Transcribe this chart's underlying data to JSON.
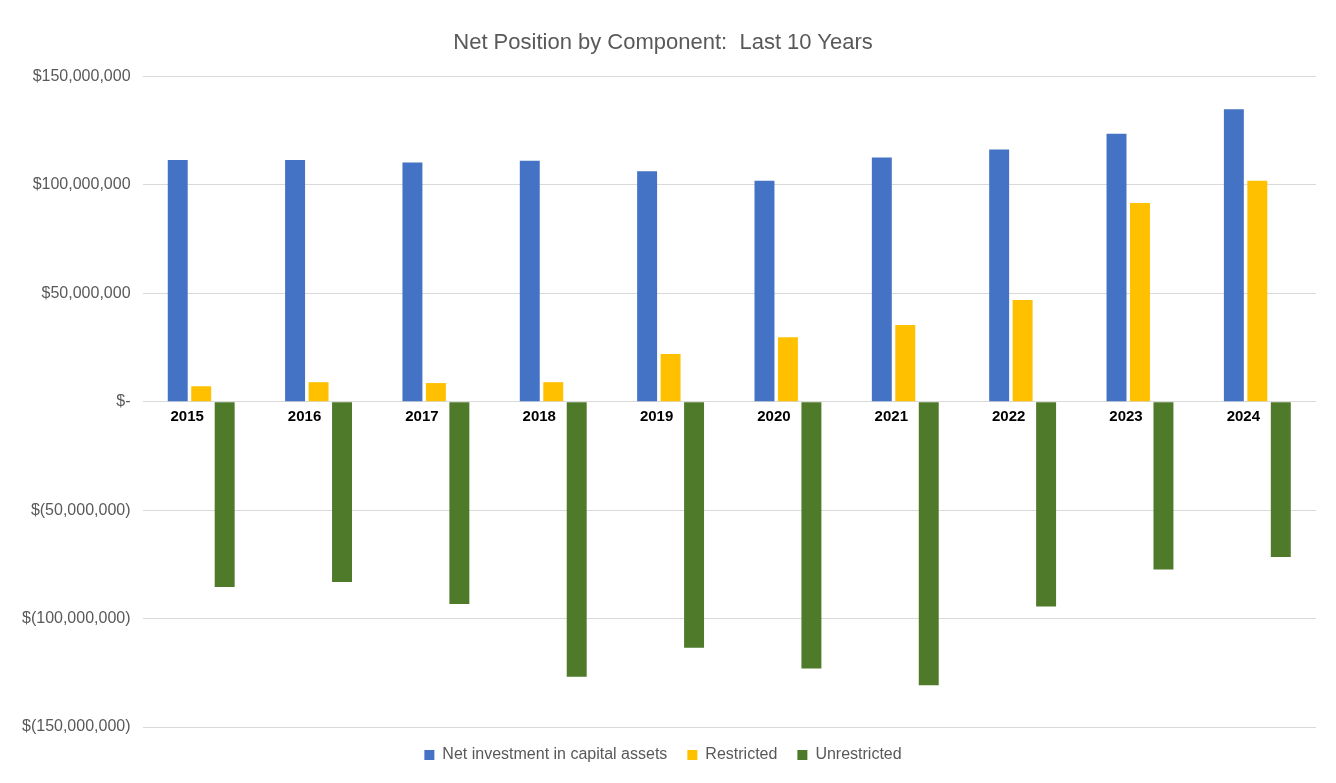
{
  "chart_data": {
    "type": "bar",
    "title": "Net Position by Component:  Last 10 Years",
    "categories": [
      "2015",
      "2016",
      "2017",
      "2018",
      "2019",
      "2020",
      "2021",
      "2022",
      "2023",
      "2024"
    ],
    "series": [
      {
        "name": "Net investment in capital assets",
        "color": "#4472c4",
        "values": [
          111500000,
          111500000,
          110300000,
          111100000,
          106300000,
          101900000,
          112600000,
          116300000,
          123600000,
          134900000
        ]
      },
      {
        "name": "Restricted",
        "color": "#ffc000",
        "values": [
          7100000,
          9000000,
          8600000,
          9000000,
          22000000,
          29700000,
          35400000,
          46900000,
          91600000,
          101900000
        ]
      },
      {
        "name": "Unrestricted",
        "color": "#4e7a2a",
        "values": [
          -85400000,
          -83100000,
          -93300000,
          -126800000,
          -113400000,
          -123000000,
          -130800000,
          -94400000,
          -77400000,
          -71600000
        ]
      }
    ],
    "ylim": [
      -150000000,
      150000000
    ],
    "yticks": [
      {
        "value": -150000000,
        "label": "$(150,000,000)"
      },
      {
        "value": -100000000,
        "label": "$(100,000,000)"
      },
      {
        "value": -50000000,
        "label": "$(50,000,000)"
      },
      {
        "value": 0,
        "label": "$-"
      },
      {
        "value": 50000000,
        "label": "$50,000,000"
      },
      {
        "value": 100000000,
        "label": "$100,000,000"
      },
      {
        "value": 150000000,
        "label": "$150,000,000"
      }
    ],
    "grid": "y",
    "legend": "bottom"
  }
}
